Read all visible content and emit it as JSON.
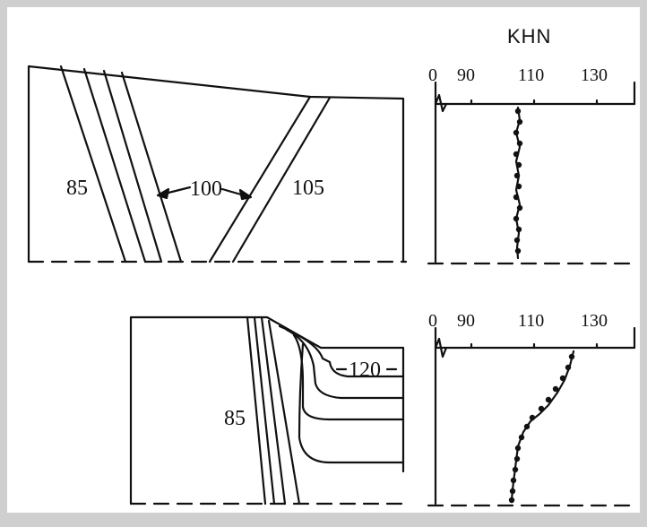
{
  "axis_title": "KHN",
  "top": {
    "ticks": [
      "0",
      "90",
      "110",
      "130"
    ],
    "labels": {
      "left": "85",
      "middle": "100",
      "right": "105"
    }
  },
  "bottom": {
    "ticks": [
      "0",
      "90",
      "110",
      "130"
    ],
    "labels": {
      "left": "85",
      "inner": "120"
    }
  }
}
